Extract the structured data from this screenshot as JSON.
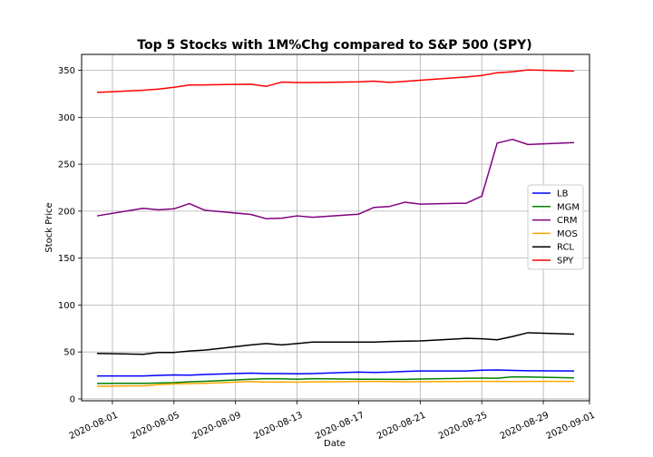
{
  "chart_data": {
    "type": "line",
    "title": "Top 5 Stocks with 1M%Chg compared to S&P 500 (SPY)",
    "xlabel": "Date",
    "ylabel": "Stock Price",
    "xlim": [
      "2020-07-30",
      "2020-09-01"
    ],
    "ylim": [
      -2,
      367
    ],
    "grid": true,
    "legend_position": "center-right",
    "x_ticks": [
      "2020-08-01",
      "2020-08-05",
      "2020-08-09",
      "2020-08-13",
      "2020-08-17",
      "2020-08-21",
      "2020-08-25",
      "2020-08-29",
      "2020-09-01"
    ],
    "y_ticks": [
      0,
      50,
      100,
      150,
      200,
      250,
      300,
      350
    ],
    "x": [
      "2020-07-31",
      "2020-08-03",
      "2020-08-04",
      "2020-08-05",
      "2020-08-06",
      "2020-08-07",
      "2020-08-10",
      "2020-08-11",
      "2020-08-12",
      "2020-08-13",
      "2020-08-14",
      "2020-08-17",
      "2020-08-18",
      "2020-08-19",
      "2020-08-20",
      "2020-08-21",
      "2020-08-24",
      "2020-08-25",
      "2020-08-26",
      "2020-08-27",
      "2020-08-28",
      "2020-08-31"
    ],
    "series": [
      {
        "name": "LB",
        "color": "#0000ff",
        "values": [
          24.5,
          24.5,
          25,
          25.5,
          25.3,
          26,
          27.5,
          27,
          27,
          26.8,
          27,
          28.6,
          28.2,
          28.5,
          29.3,
          29.8,
          29.7,
          30.6,
          30.8,
          30.3,
          30,
          29.8
        ]
      },
      {
        "name": "MGM",
        "color": "#008000",
        "values": [
          16.5,
          16.6,
          17,
          17.3,
          18.3,
          18.8,
          20.9,
          21.6,
          21.4,
          20.9,
          21.5,
          21,
          21,
          20.8,
          20.8,
          21.2,
          22,
          22.1,
          22,
          23.5,
          23.3,
          22.4
        ]
      },
      {
        "name": "CRM",
        "color": "#800080",
        "values": [
          195,
          203,
          201.5,
          202.5,
          208,
          201,
          196.5,
          192,
          192.5,
          195,
          193.5,
          196.8,
          204,
          205,
          209.5,
          207.5,
          208.5,
          216,
          272.5,
          276.5,
          271,
          273
        ]
      },
      {
        "name": "MOS",
        "color": "#ffa500",
        "values": [
          13.5,
          14,
          15.2,
          16,
          16.3,
          16.6,
          18.5,
          17.9,
          18,
          17.8,
          18.2,
          18.5,
          18.6,
          18.4,
          18.3,
          18.4,
          18.6,
          18.6,
          18.6,
          18.5,
          18.6,
          18.6
        ]
      },
      {
        "name": "RCL",
        "color": "#000000",
        "values": [
          48.5,
          47.5,
          49.5,
          49.5,
          51,
          52,
          57.5,
          59,
          57.5,
          59,
          60.5,
          60.5,
          60.5,
          61.2,
          61.5,
          61.8,
          64.5,
          64,
          63,
          66.5,
          70.5,
          69
        ]
      },
      {
        "name": "SPY",
        "color": "#ff0000",
        "values": [
          326.5,
          328.8,
          330,
          332,
          334.4,
          334.5,
          335.3,
          333,
          337.5,
          337,
          337,
          337.8,
          338.5,
          337.2,
          338.3,
          339.5,
          343,
          344.5,
          347.5,
          348.5,
          350.5,
          349.3
        ]
      }
    ]
  }
}
